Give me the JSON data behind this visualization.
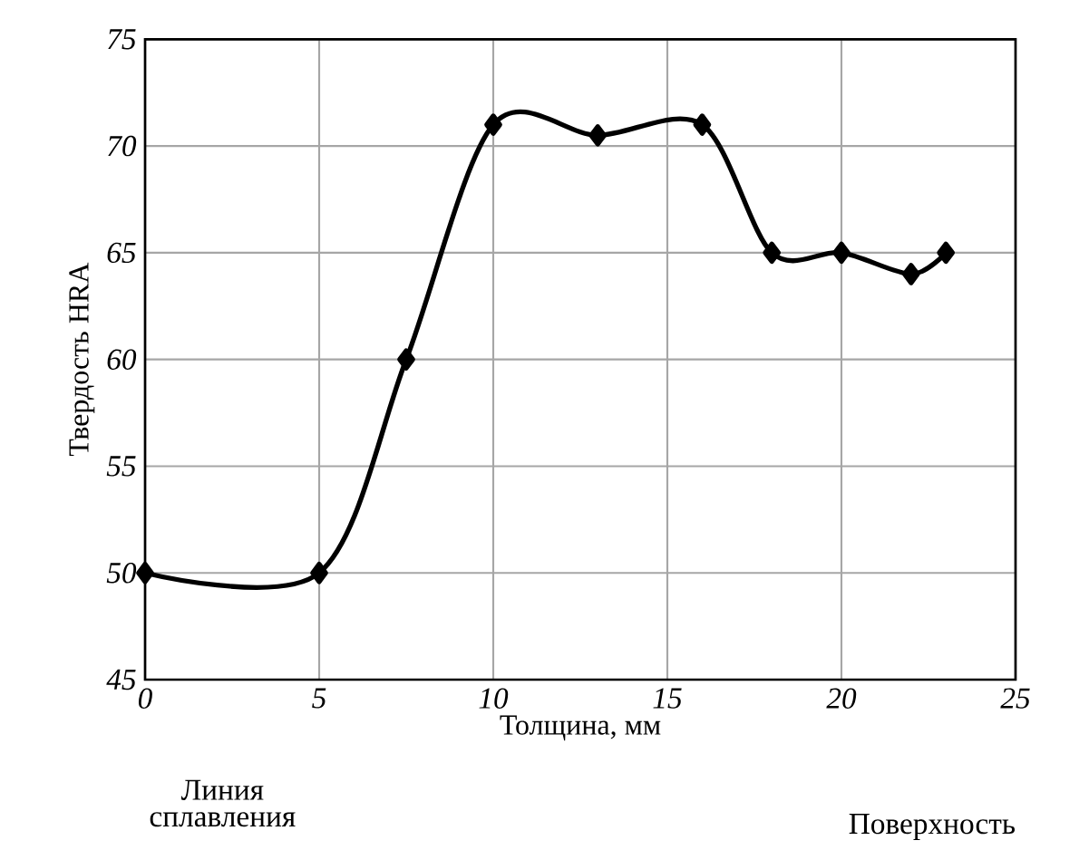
{
  "chart_data": {
    "type": "line",
    "xlabel": "Толщина, мм",
    "ylabel": "Твердость HRA",
    "x": [
      0,
      5,
      7.5,
      10,
      13,
      16,
      18,
      20,
      22,
      23
    ],
    "series": [
      {
        "color": "#000000",
        "values": [
          50,
          50,
          60,
          71,
          70.5,
          71,
          65,
          65,
          64,
          65
        ]
      }
    ],
    "xlim": [
      0,
      25
    ],
    "ylim": [
      45,
      75
    ],
    "xticks": [
      0,
      5,
      10,
      15,
      20,
      25
    ],
    "yticks": [
      45,
      50,
      55,
      60,
      65,
      70,
      75
    ],
    "grid": true,
    "marker": "diamond",
    "line_style": "solid",
    "annotations": [
      "Линия сплавления",
      "Поверхность"
    ]
  }
}
